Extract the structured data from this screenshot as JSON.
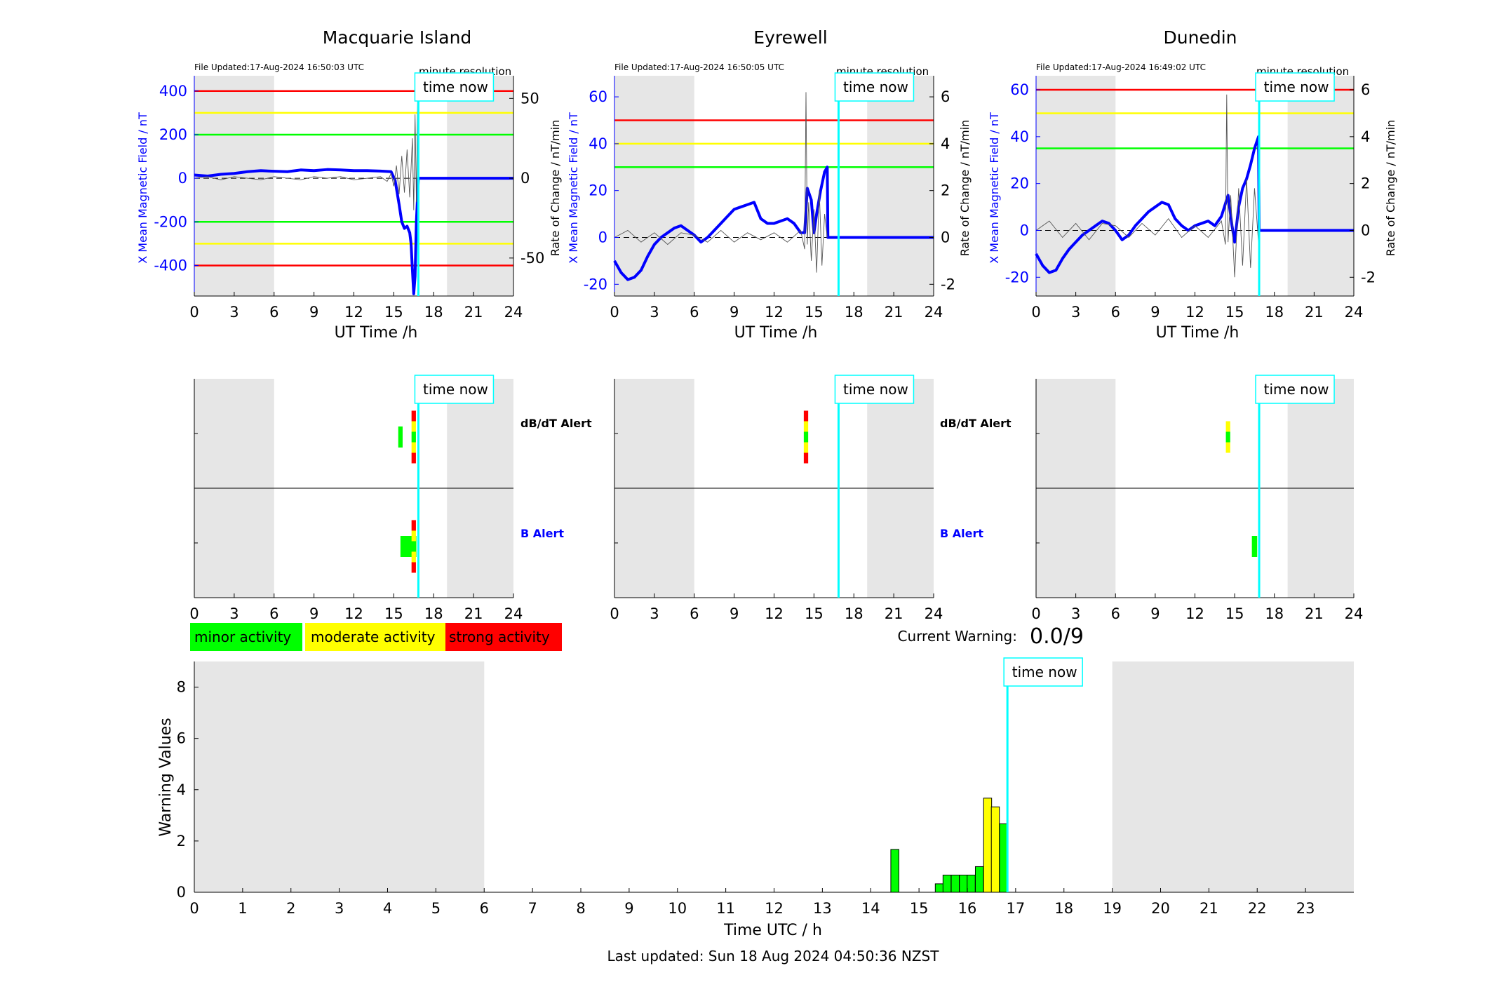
{
  "top_ticks": [
    "0",
    "3",
    "6",
    "9",
    "12",
    "15",
    "18",
    "21",
    "24"
  ],
  "bottom_ticks": [
    "0",
    "1",
    "2",
    "3",
    "4",
    "5",
    "6",
    "7",
    "8",
    "9",
    "10",
    "11",
    "12",
    "13",
    "14",
    "15",
    "16",
    "17",
    "18",
    "19",
    "20",
    "21",
    "22",
    "23"
  ],
  "time_now_label": "time now",
  "minute_resolution_label": "minute resolution",
  "dbdt_alert_label": "dB/dT Alert",
  "b_alert_label": "B Alert",
  "colors": {
    "red": "#ff0000",
    "yellow": "#ffff00",
    "green": "#00ff00",
    "field_line": "#0000ff",
    "time_now": "#00ffff",
    "night": "#e6e6e6"
  },
  "legend": {
    "minor": "minor activity",
    "moderate": "moderate activity",
    "strong": "strong activity"
  },
  "current_warning": {
    "label": "Current Warning:",
    "value": "0.0/9"
  },
  "footer": {
    "last_updated": "Last updated: Sun 18 Aug 2024 04:50:36 NZST"
  },
  "chart_data": [
    {
      "type": "line",
      "station": "macquarie",
      "title": "Macquarie Island",
      "file_updated": "File Updated:17-Aug-2024 16:50:03 UTC",
      "xlabel": "UT Time /h",
      "ylabel_left": "X Mean Magnetic Field / nT",
      "ylabel_right": "",
      "xlim": [
        0,
        24
      ],
      "ylim_left": [
        -540,
        470
      ],
      "y_ticks_left": [
        "400",
        "200",
        "0",
        "-200",
        "-400"
      ],
      "y_ticks_left_values": [
        400,
        200,
        0,
        -200,
        -400
      ],
      "ylim_right": [
        -73.8,
        64.2
      ],
      "y_ticks_right": [
        "50",
        "0",
        "-50"
      ],
      "y_ticks_right_values": [
        50,
        0,
        -50
      ],
      "night_shading": [
        [
          0,
          6
        ],
        [
          19,
          24
        ]
      ],
      "time_now_h": 16.85,
      "thresholds": {
        "red": [
          400,
          -400
        ],
        "yellow": [
          300,
          -300
        ],
        "green": [
          200,
          -200
        ]
      },
      "series": [
        {
          "axis": "left",
          "style": "field",
          "x": [
            0,
            1,
            2,
            3,
            4,
            5,
            6,
            7,
            8,
            9,
            10,
            11,
            12,
            13,
            14,
            14.8,
            15.1,
            15.4,
            15.6,
            15.8,
            16,
            16.2,
            16.3,
            16.4,
            16.5,
            16.6,
            16.7,
            16.85,
            24
          ],
          "y": [
            15,
            10,
            18,
            22,
            30,
            35,
            32,
            30,
            38,
            35,
            40,
            38,
            35,
            35,
            33,
            30,
            -10,
            -120,
            -200,
            -230,
            -220,
            -250,
            -300,
            -420,
            -530,
            -450,
            -200,
            0,
            0
          ]
        },
        {
          "axis": "right",
          "style": "rate",
          "x": [
            0,
            1,
            2,
            3,
            4,
            5,
            6,
            7,
            8,
            9,
            10,
            11,
            12,
            13,
            14,
            14.5,
            14.8,
            15,
            15.2,
            15.4,
            15.6,
            15.8,
            16,
            16.2,
            16.4,
            16.5,
            16.6,
            16.7,
            16.8,
            16.85
          ],
          "y": [
            0,
            1,
            -1,
            1,
            0,
            -1,
            1,
            0,
            -1,
            1,
            0,
            1,
            -1,
            0,
            1,
            -2,
            3,
            -5,
            8,
            -10,
            14,
            -9,
            18,
            -12,
            25,
            -20,
            40,
            -15,
            55,
            0
          ]
        }
      ]
    },
    {
      "type": "line",
      "station": "eyrewell",
      "title": "Eyrewell",
      "file_updated": "File Updated:17-Aug-2024 16:50:05 UTC",
      "xlabel": "UT Time /h",
      "ylabel_left": "X Mean Magnetic Field / nT",
      "ylabel_right": "Rate of Change / nT/min",
      "xlim": [
        0,
        24
      ],
      "ylim_left": [
        -25,
        69
      ],
      "y_ticks_left": [
        "60",
        "40",
        "20",
        "0",
        "-20"
      ],
      "y_ticks_left_values": [
        60,
        40,
        20,
        0,
        -20
      ],
      "ylim_right": [
        -2.5,
        6.9
      ],
      "y_ticks_right": [
        "6",
        "4",
        "2",
        "0",
        "-2"
      ],
      "y_ticks_right_values": [
        6,
        4,
        2,
        0,
        -2
      ],
      "night_shading": [
        [
          0,
          6
        ],
        [
          19,
          24
        ]
      ],
      "time_now_h": 16.85,
      "thresholds": {
        "red": [
          50
        ],
        "yellow": [
          40
        ],
        "green": [
          30
        ]
      },
      "series": [
        {
          "axis": "left",
          "style": "field",
          "x": [
            0,
            0.5,
            1,
            1.5,
            2,
            2.5,
            3,
            3.5,
            4,
            4.5,
            5,
            5.5,
            6,
            6.5,
            7,
            7.5,
            8,
            8.5,
            9,
            9.5,
            10,
            10.5,
            11,
            11.5,
            12,
            12.5,
            13,
            13.5,
            14,
            14.3,
            14.5,
            14.8,
            15,
            15.2,
            15.5,
            15.8,
            16,
            16.05,
            24
          ],
          "y": [
            -10,
            -15,
            -18,
            -17,
            -14,
            -8,
            -3,
            0,
            2,
            4,
            5,
            3,
            1,
            -2,
            0,
            3,
            6,
            9,
            12,
            13,
            14,
            15,
            8,
            6,
            6,
            7,
            8,
            6,
            2,
            2,
            21,
            16,
            2,
            10,
            20,
            28,
            30,
            0,
            0
          ]
        },
        {
          "axis": "right",
          "style": "rate",
          "x": [
            0,
            1,
            2,
            3,
            4,
            5,
            6,
            7,
            8,
            9,
            10,
            11,
            12,
            13,
            14,
            14.3,
            14.4,
            14.5,
            14.6,
            14.8,
            15,
            15.2,
            15.4,
            15.6,
            15.8,
            16
          ],
          "y": [
            0,
            0.3,
            -0.2,
            0.2,
            -0.3,
            0.2,
            0.1,
            -0.2,
            0.3,
            -0.2,
            0.2,
            -0.1,
            0.2,
            -0.2,
            0.3,
            -0.5,
            6.2,
            -0.3,
            1.5,
            -1,
            1.2,
            -1.5,
            2,
            -1.2,
            1,
            0
          ]
        }
      ]
    },
    {
      "type": "line",
      "station": "dunedin",
      "title": "Dunedin",
      "file_updated": "File Updated:17-Aug-2024 16:49:02 UTC",
      "xlabel": "UT Time /h",
      "ylabel_left": "X Mean Magnetic Field / nT",
      "ylabel_right": "Rate of Change / nT/min",
      "xlim": [
        0,
        24
      ],
      "ylim_left": [
        -28,
        66
      ],
      "y_ticks_left": [
        "60",
        "40",
        "20",
        "0",
        "-20"
      ],
      "y_ticks_left_values": [
        60,
        40,
        20,
        0,
        -20
      ],
      "ylim_right": [
        -2.8,
        6.6
      ],
      "y_ticks_right": [
        "6",
        "4",
        "2",
        "0",
        "-2"
      ],
      "y_ticks_right_values": [
        6,
        4,
        2,
        0,
        -2
      ],
      "night_shading": [
        [
          0,
          6
        ],
        [
          19,
          24
        ]
      ],
      "time_now_h": 16.85,
      "thresholds": {
        "red": [
          60
        ],
        "yellow": [
          50
        ],
        "green": [
          35
        ]
      },
      "series": [
        {
          "axis": "left",
          "style": "field",
          "x": [
            0,
            0.5,
            1,
            1.5,
            2,
            2.5,
            3,
            3.5,
            4,
            4.5,
            5,
            5.5,
            6,
            6.5,
            7,
            7.5,
            8,
            8.5,
            9,
            9.5,
            10,
            10.5,
            11,
            11.5,
            12,
            12.5,
            13,
            13.5,
            14,
            14.5,
            14.8,
            15,
            15.3,
            15.6,
            15.9,
            16.2,
            16.5,
            16.8,
            16.85,
            24
          ],
          "y": [
            -10,
            -15,
            -18,
            -17,
            -12,
            -8,
            -5,
            -2,
            0,
            2,
            4,
            3,
            0,
            -4,
            -2,
            2,
            5,
            8,
            10,
            12,
            11,
            5,
            2,
            0,
            2,
            3,
            4,
            2,
            6,
            15,
            2,
            -5,
            10,
            18,
            22,
            28,
            35,
            40,
            0,
            0
          ]
        },
        {
          "axis": "right",
          "style": "rate",
          "x": [
            0,
            1,
            2,
            3,
            4,
            5,
            6,
            7,
            8,
            9,
            10,
            11,
            12,
            13,
            14,
            14.3,
            14.4,
            14.5,
            14.7,
            15,
            15.3,
            15.6,
            15.9,
            16.2,
            16.5,
            16.8
          ],
          "y": [
            0,
            0.4,
            -0.3,
            0.3,
            -0.4,
            0.3,
            0.2,
            -0.3,
            0.3,
            -0.2,
            0.5,
            -0.3,
            0.2,
            -0.3,
            0.4,
            -0.6,
            5.8,
            -0.5,
            1.5,
            -2,
            1.8,
            -1.5,
            2.2,
            -1.6,
            1.8,
            -0.5
          ]
        }
      ]
    },
    {
      "type": "bar",
      "station": "macquarie",
      "chart": "alerts",
      "xlim": [
        0,
        24
      ],
      "xlabel": "",
      "night_shading": [
        [
          0,
          6
        ],
        [
          19,
          24
        ]
      ],
      "time_now_h": 16.85,
      "dbdt_alert": [
        {
          "x": 15.5,
          "width": 0.33,
          "levels": [
            "green"
          ]
        },
        {
          "x": 16.5,
          "width": 0.33,
          "levels": [
            "red",
            "yellow",
            "green",
            "yellow",
            "red"
          ]
        }
      ],
      "b_alert": [
        {
          "x": 16.1,
          "width": 1.2,
          "levels": [
            "green"
          ]
        },
        {
          "x": 16.5,
          "width": 0.33,
          "levels": [
            "red",
            "yellow",
            "green",
            "yellow",
            "red"
          ]
        }
      ]
    },
    {
      "type": "bar",
      "station": "eyrewell",
      "chart": "alerts",
      "xlim": [
        0,
        24
      ],
      "xlabel": "",
      "night_shading": [
        [
          0,
          6
        ],
        [
          19,
          24
        ]
      ],
      "time_now_h": 16.85,
      "dbdt_alert": [
        {
          "x": 14.4,
          "width": 0.33,
          "levels": [
            "red",
            "yellow",
            "green",
            "yellow",
            "red"
          ]
        }
      ],
      "b_alert": []
    },
    {
      "type": "bar",
      "station": "dunedin",
      "chart": "alerts",
      "xlim": [
        0,
        24
      ],
      "xlabel": "",
      "night_shading": [
        [
          0,
          6
        ],
        [
          19,
          24
        ]
      ],
      "time_now_h": 16.85,
      "dbdt_alert": [
        {
          "x": 14.5,
          "width": 0.33,
          "levels": [
            "yellow",
            "green",
            "yellow"
          ]
        }
      ],
      "b_alert": [
        {
          "x": 16.5,
          "width": 0.4,
          "levels": [
            "green"
          ]
        }
      ]
    },
    {
      "type": "bar",
      "chart": "warning",
      "xlabel": "Time UTC / h",
      "ylabel": "Warning Values",
      "xlim": [
        0,
        24
      ],
      "ylim": [
        0,
        9
      ],
      "y_ticks": [
        "0",
        "2",
        "4",
        "6",
        "8"
      ],
      "y_ticks_values": [
        0,
        2,
        4,
        6,
        8
      ],
      "night_shading": [
        [
          0,
          6
        ],
        [
          19,
          24
        ]
      ],
      "time_now_h": 16.83,
      "bar_width_h": 0.1667,
      "bars": [
        {
          "x": 14.5,
          "value": 1.67,
          "level": "green"
        },
        {
          "x": 15.42,
          "value": 0.33,
          "level": "green"
        },
        {
          "x": 15.58,
          "value": 0.67,
          "level": "green"
        },
        {
          "x": 15.75,
          "value": 0.67,
          "level": "green"
        },
        {
          "x": 15.92,
          "value": 0.67,
          "level": "green"
        },
        {
          "x": 16.08,
          "value": 0.67,
          "level": "green"
        },
        {
          "x": 16.25,
          "value": 1.0,
          "level": "green"
        },
        {
          "x": 16.42,
          "value": 3.67,
          "level": "yellow"
        },
        {
          "x": 16.58,
          "value": 3.33,
          "level": "yellow"
        },
        {
          "x": 16.75,
          "value": 2.67,
          "level": "green"
        }
      ]
    }
  ]
}
